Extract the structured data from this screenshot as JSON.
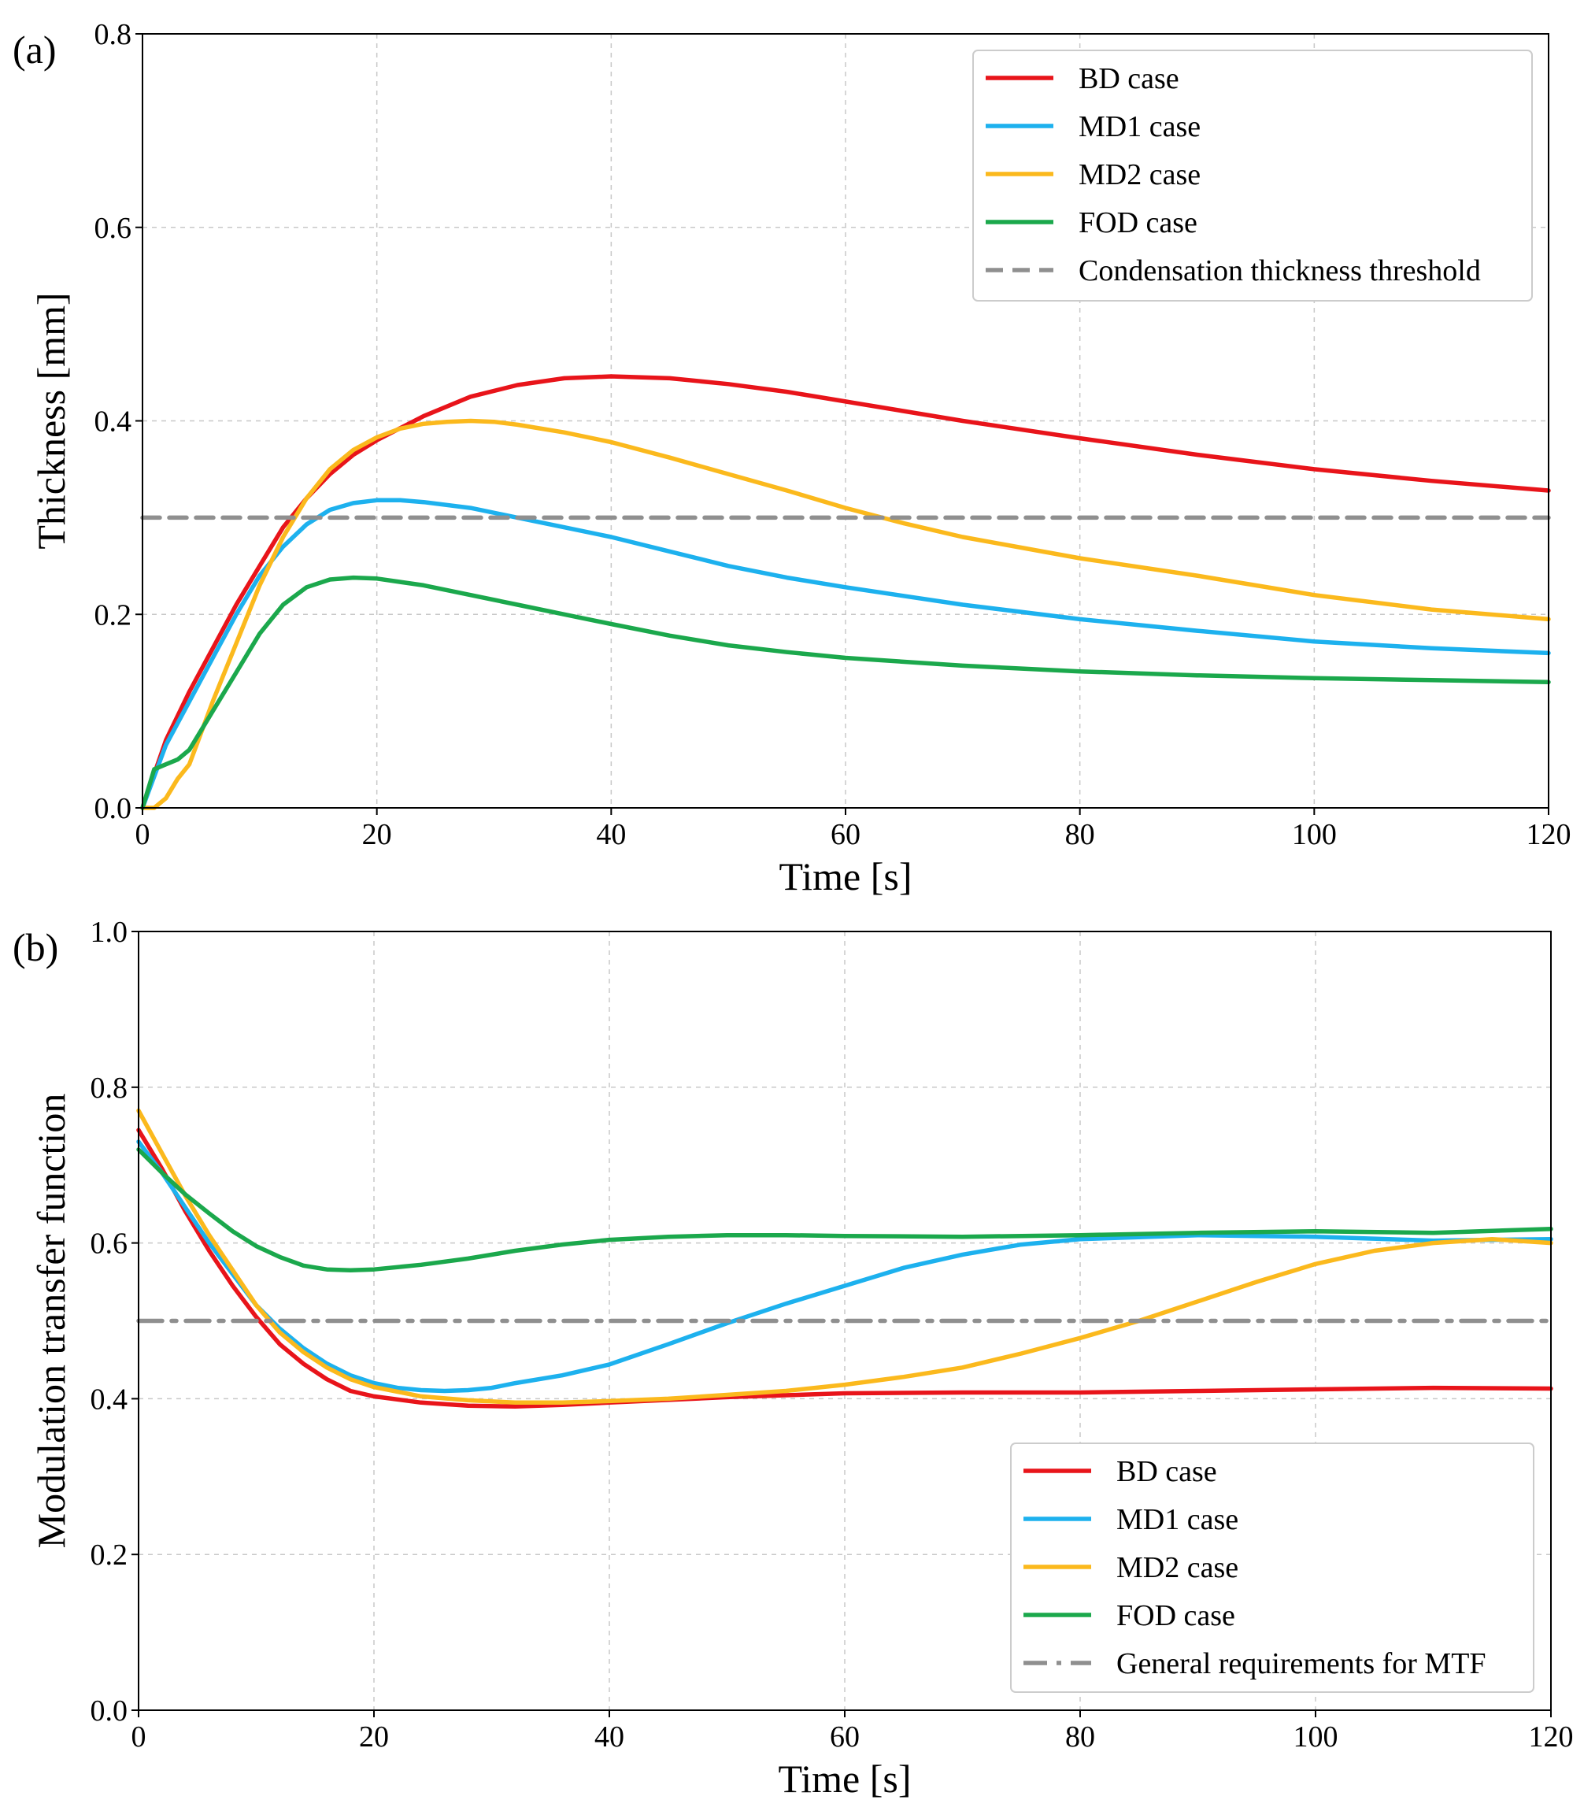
{
  "colors": {
    "BD": "#e8141a",
    "MD1": "#1db1ee",
    "MD2": "#fbb91d",
    "FOD": "#1ba84c",
    "reference": "#8f8f8f"
  },
  "chart_data": [
    {
      "id": "a",
      "type": "line",
      "panel_label": "(a)",
      "title": "",
      "xlabel": "Time [s]",
      "ylabel": "Thickness [mm]",
      "xlim": [
        0,
        120
      ],
      "ylim": [
        0,
        0.8
      ],
      "xticks": [
        0,
        20,
        40,
        60,
        80,
        100,
        120
      ],
      "xtick_labels": [
        "0",
        "20",
        "40",
        "60",
        "80",
        "100",
        "120"
      ],
      "yticks": [
        0.0,
        0.2,
        0.4,
        0.6,
        0.8
      ],
      "ytick_labels": [
        "0.0",
        "0.2",
        "0.4",
        "0.6",
        "0.8"
      ],
      "grid": true,
      "legend_position": "top-right",
      "series": [
        {
          "name": "BD case",
          "color_key": "BD",
          "style": "solid",
          "x": [
            0,
            2,
            4,
            6,
            8,
            10,
            12,
            14,
            16,
            18,
            20,
            24,
            28,
            32,
            36,
            40,
            45,
            50,
            55,
            60,
            70,
            80,
            90,
            100,
            110,
            120
          ],
          "y": [
            0.0,
            0.07,
            0.12,
            0.165,
            0.21,
            0.25,
            0.29,
            0.32,
            0.345,
            0.365,
            0.38,
            0.405,
            0.425,
            0.437,
            0.444,
            0.446,
            0.444,
            0.438,
            0.43,
            0.42,
            0.4,
            0.382,
            0.365,
            0.35,
            0.338,
            0.328
          ]
        },
        {
          "name": "MD1 case",
          "color_key": "MD1",
          "style": "solid",
          "x": [
            0,
            2,
            4,
            6,
            8,
            10,
            12,
            14,
            16,
            18,
            20,
            22,
            24,
            28,
            32,
            36,
            40,
            45,
            50,
            55,
            60,
            70,
            80,
            90,
            100,
            110,
            120
          ],
          "y": [
            0.0,
            0.065,
            0.11,
            0.155,
            0.2,
            0.24,
            0.27,
            0.293,
            0.308,
            0.315,
            0.318,
            0.318,
            0.316,
            0.31,
            0.3,
            0.29,
            0.28,
            0.265,
            0.25,
            0.238,
            0.228,
            0.21,
            0.195,
            0.183,
            0.172,
            0.165,
            0.16
          ]
        },
        {
          "name": "MD2 case",
          "color_key": "MD2",
          "style": "solid",
          "x": [
            0,
            1,
            2,
            3,
            4,
            6,
            8,
            10,
            12,
            14,
            16,
            18,
            20,
            22,
            24,
            26,
            28,
            30,
            32,
            36,
            40,
            45,
            50,
            55,
            60,
            65,
            70,
            80,
            90,
            100,
            110,
            120
          ],
          "y": [
            0.0,
            0.0,
            0.01,
            0.03,
            0.045,
            0.11,
            0.17,
            0.23,
            0.28,
            0.32,
            0.35,
            0.37,
            0.383,
            0.392,
            0.397,
            0.399,
            0.4,
            0.399,
            0.396,
            0.388,
            0.378,
            0.362,
            0.345,
            0.328,
            0.31,
            0.294,
            0.28,
            0.258,
            0.24,
            0.22,
            0.205,
            0.195
          ]
        },
        {
          "name": "FOD case",
          "color_key": "FOD",
          "style": "solid",
          "x": [
            0,
            1,
            2,
            3,
            4,
            6,
            8,
            10,
            12,
            14,
            16,
            18,
            20,
            24,
            28,
            32,
            36,
            40,
            45,
            50,
            55,
            60,
            70,
            80,
            90,
            100,
            110,
            120
          ],
          "y": [
            0.0,
            0.04,
            0.045,
            0.05,
            0.06,
            0.1,
            0.14,
            0.18,
            0.21,
            0.228,
            0.236,
            0.238,
            0.237,
            0.23,
            0.22,
            0.21,
            0.2,
            0.19,
            0.178,
            0.168,
            0.161,
            0.155,
            0.147,
            0.141,
            0.137,
            0.134,
            0.132,
            0.13
          ]
        },
        {
          "name": "Condensation thickness threshold",
          "color_key": "reference",
          "style": "dashed",
          "x": [
            0,
            120
          ],
          "y": [
            0.3,
            0.3
          ]
        }
      ]
    },
    {
      "id": "b",
      "type": "line",
      "panel_label": "(b)",
      "title": "",
      "xlabel": "Time [s]",
      "ylabel": "Modulation transfer function",
      "xlim": [
        0,
        120
      ],
      "ylim": [
        0,
        1.0
      ],
      "xticks": [
        0,
        20,
        40,
        60,
        80,
        100,
        120
      ],
      "xtick_labels": [
        "0",
        "20",
        "40",
        "60",
        "80",
        "100",
        "120"
      ],
      "yticks": [
        0.0,
        0.2,
        0.4,
        0.6,
        0.8,
        1.0
      ],
      "ytick_labels": [
        "0.0",
        "0.2",
        "0.4",
        "0.6",
        "0.8",
        "1.0"
      ],
      "grid": true,
      "legend_position": "bottom-right",
      "series": [
        {
          "name": "BD case",
          "color_key": "BD",
          "style": "solid",
          "x": [
            0,
            2,
            4,
            6,
            8,
            10,
            12,
            14,
            16,
            18,
            20,
            24,
            28,
            32,
            36,
            40,
            50,
            60,
            70,
            80,
            90,
            100,
            110,
            120
          ],
          "y": [
            0.745,
            0.695,
            0.64,
            0.59,
            0.545,
            0.505,
            0.47,
            0.445,
            0.425,
            0.41,
            0.403,
            0.395,
            0.391,
            0.39,
            0.392,
            0.395,
            0.402,
            0.407,
            0.408,
            0.408,
            0.41,
            0.412,
            0.414,
            0.413
          ]
        },
        {
          "name": "MD1 case",
          "color_key": "MD1",
          "style": "solid",
          "x": [
            0,
            2,
            4,
            6,
            8,
            10,
            12,
            14,
            16,
            18,
            20,
            22,
            24,
            26,
            28,
            30,
            32,
            36,
            40,
            45,
            50,
            55,
            60,
            65,
            70,
            75,
            80,
            90,
            100,
            110,
            120
          ],
          "y": [
            0.73,
            0.69,
            0.645,
            0.6,
            0.56,
            0.52,
            0.49,
            0.465,
            0.445,
            0.43,
            0.42,
            0.414,
            0.411,
            0.41,
            0.411,
            0.414,
            0.42,
            0.43,
            0.444,
            0.47,
            0.497,
            0.522,
            0.545,
            0.568,
            0.585,
            0.598,
            0.605,
            0.61,
            0.608,
            0.603,
            0.605
          ]
        },
        {
          "name": "MD2 case",
          "color_key": "MD2",
          "style": "solid",
          "x": [
            0,
            2,
            4,
            6,
            8,
            10,
            12,
            14,
            16,
            18,
            20,
            24,
            28,
            32,
            36,
            40,
            45,
            50,
            55,
            60,
            65,
            70,
            75,
            80,
            85,
            90,
            95,
            100,
            105,
            110,
            115,
            120
          ],
          "y": [
            0.77,
            0.715,
            0.66,
            0.61,
            0.565,
            0.52,
            0.485,
            0.46,
            0.44,
            0.425,
            0.415,
            0.403,
            0.398,
            0.395,
            0.395,
            0.397,
            0.4,
            0.405,
            0.41,
            0.418,
            0.428,
            0.44,
            0.458,
            0.478,
            0.5,
            0.525,
            0.55,
            0.573,
            0.59,
            0.6,
            0.605,
            0.6
          ]
        },
        {
          "name": "FOD case",
          "color_key": "FOD",
          "style": "solid",
          "x": [
            0,
            2,
            4,
            6,
            8,
            10,
            12,
            14,
            16,
            18,
            20,
            24,
            28,
            32,
            36,
            40,
            45,
            50,
            55,
            60,
            70,
            80,
            90,
            100,
            110,
            120
          ],
          "y": [
            0.72,
            0.69,
            0.662,
            0.638,
            0.615,
            0.596,
            0.582,
            0.571,
            0.566,
            0.565,
            0.566,
            0.572,
            0.58,
            0.59,
            0.598,
            0.604,
            0.608,
            0.61,
            0.61,
            0.609,
            0.608,
            0.61,
            0.613,
            0.615,
            0.613,
            0.618
          ]
        },
        {
          "name": "General requirements for MTF",
          "color_key": "reference",
          "style": "dashdot",
          "x": [
            0,
            120
          ],
          "y": [
            0.5,
            0.5
          ]
        }
      ]
    }
  ]
}
